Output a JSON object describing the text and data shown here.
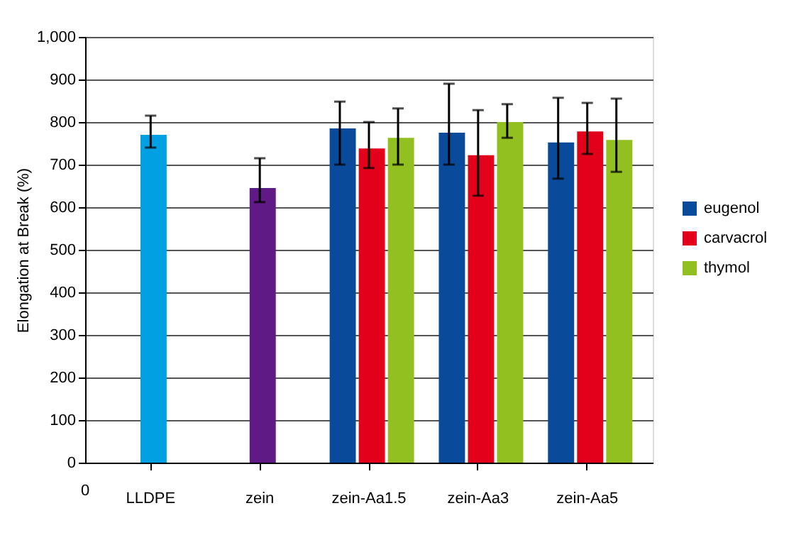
{
  "chart_data": {
    "type": "bar",
    "categories": [
      "LLDPE",
      "zein",
      "zein-Aa1.5",
      "zein-Aa3",
      "zein-Aa5"
    ],
    "series": [
      {
        "color": "#00a0e3",
        "values": [
          770,
          null,
          null,
          null,
          null
        ],
        "errors": [
          [
            740,
            815
          ],
          null,
          null,
          null,
          null
        ]
      },
      {
        "color": "#5f1a85",
        "values": [
          null,
          645,
          null,
          null,
          null
        ],
        "errors": [
          null,
          [
            612,
            715
          ],
          null,
          null,
          null
        ]
      },
      {
        "name": "eugenol",
        "color": "#0a4a9a",
        "values": [
          null,
          null,
          785,
          775,
          752
        ],
        "errors": [
          null,
          null,
          [
            700,
            848
          ],
          [
            700,
            890
          ],
          [
            667,
            857
          ]
        ]
      },
      {
        "name": "carvacrol",
        "color": "#e3001b",
        "values": [
          null,
          null,
          738,
          722,
          778
        ],
        "errors": [
          null,
          null,
          [
            692,
            800
          ],
          [
            627,
            828
          ],
          [
            725,
            845
          ]
        ]
      },
      {
        "name": "thymol",
        "color": "#92c020",
        "values": [
          null,
          null,
          763,
          800,
          758
        ],
        "errors": [
          null,
          null,
          [
            700,
            832
          ],
          [
            763,
            842
          ],
          [
            683,
            855
          ]
        ]
      }
    ],
    "ylabel": "Elongation at Break (%)",
    "ylim": [
      0,
      1000
    ],
    "yticks": [
      0,
      100,
      200,
      300,
      400,
      500,
      600,
      700,
      800,
      900,
      {
        "value": 1000,
        "label": "1,000"
      }
    ],
    "grid": "y",
    "legend": "right",
    "annotations": [
      "0"
    ]
  }
}
